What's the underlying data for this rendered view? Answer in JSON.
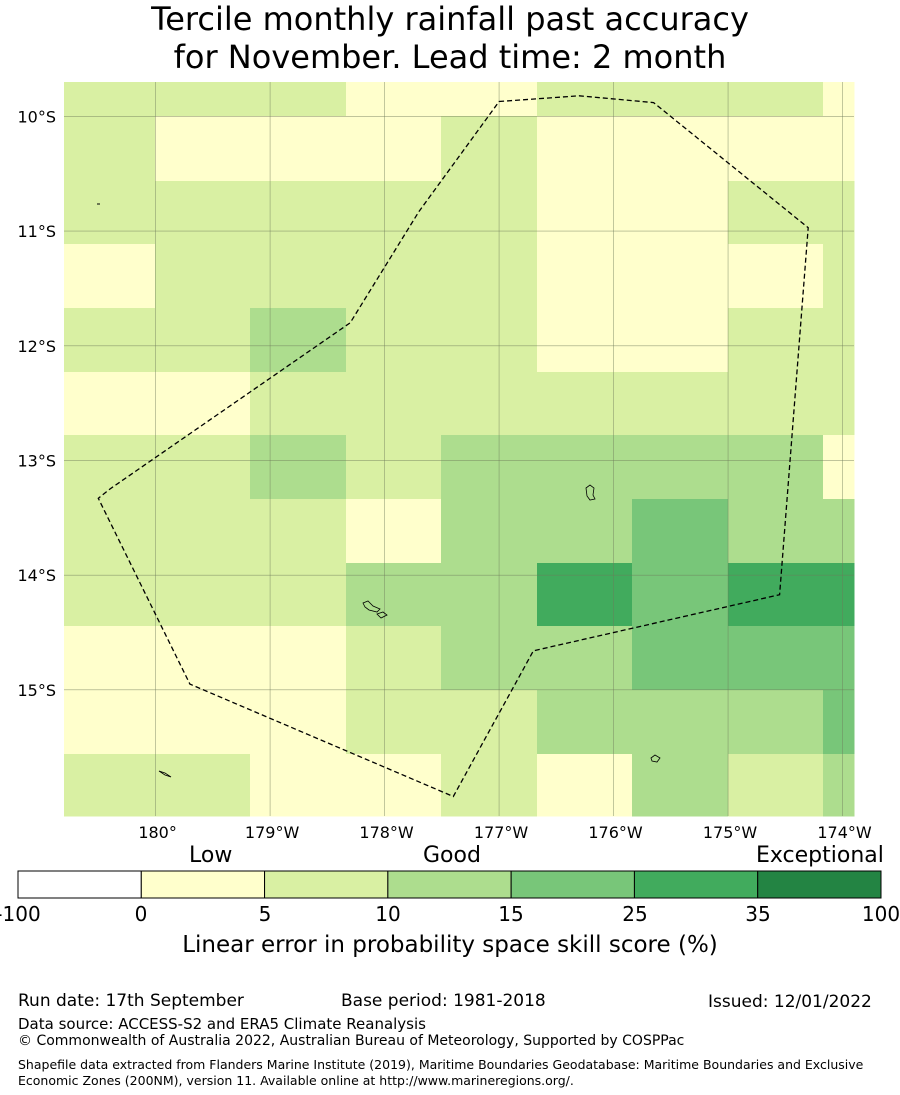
{
  "title": {
    "line1": "Tercile monthly rainfall past accuracy",
    "line2": "for November. Lead time: 2 month"
  },
  "map": {
    "lat_labels": [
      "10°S",
      "11°S",
      "12°S",
      "13°S",
      "14°S",
      "15°S"
    ],
    "lon_labels": [
      "180°",
      "179°W",
      "178°W",
      "177°W",
      "176°W",
      "175°W",
      "174°W"
    ],
    "extent": {
      "lon": [
        -180.8,
        -173.9
      ],
      "lat": [
        -16.1,
        -9.7
      ]
    },
    "grid_rows": [
      [
        1,
        1,
        1,
        0,
        0,
        1,
        1,
        1,
        0
      ],
      [
        1,
        0,
        0,
        0,
        1,
        0,
        0,
        0,
        0
      ],
      [
        1,
        1,
        1,
        1,
        1,
        0,
        0,
        1,
        1
      ],
      [
        0,
        1,
        1,
        1,
        1,
        0,
        0,
        0,
        1
      ],
      [
        1,
        1,
        2,
        1,
        1,
        0,
        0,
        1,
        1
      ],
      [
        0,
        0,
        1,
        1,
        1,
        1,
        1,
        1,
        1
      ],
      [
        1,
        1,
        2,
        1,
        2,
        2,
        2,
        2,
        0
      ],
      [
        1,
        1,
        1,
        0,
        2,
        2,
        3,
        2,
        2
      ],
      [
        1,
        1,
        1,
        2,
        2,
        4,
        3,
        4,
        4
      ],
      [
        0,
        0,
        0,
        1,
        2,
        2,
        3,
        3,
        3
      ],
      [
        0,
        0,
        0,
        1,
        1,
        2,
        2,
        2,
        3
      ],
      [
        1,
        1,
        0,
        0,
        1,
        0,
        2,
        1,
        2
      ]
    ],
    "eez_boundary": [
      [
        -177.0,
        -9.87
      ],
      [
        -176.3,
        -9.82
      ],
      [
        -175.65,
        -9.88
      ],
      [
        -174.3,
        -10.97
      ],
      [
        -174.55,
        -14.17
      ],
      [
        -176.7,
        -14.66
      ],
      [
        -177.4,
        -15.93
      ],
      [
        -179.7,
        -14.95
      ],
      [
        -180.5,
        -13.33
      ],
      [
        -180.4,
        -13.25
      ],
      [
        -178.3,
        -11.8
      ],
      [
        -177.7,
        -10.83
      ]
    ]
  },
  "colorbar": {
    "words": [
      "Low",
      "Good",
      "Exceptional"
    ],
    "ticks": [
      "-100",
      "0",
      "5",
      "10",
      "15",
      "25",
      "35",
      "100"
    ],
    "colors": [
      "#ffffff",
      "#ffffcc",
      "#d9f0a3",
      "#addd8e",
      "#78c679",
      "#41ab5d",
      "#238443"
    ],
    "label": "Linear error in probability space skill score (%)"
  },
  "footer": {
    "run_date": "Run date: 17th September",
    "base_period": "Base period: 1981-2018",
    "issued": "Issued: 12/01/2022",
    "data_source": "Data source: ACCESS-S2 and ERA5 Climate Reanalysis",
    "copyright": "© Commonwealth of Australia 2022, Australian Bureau of Meteorology, Supported by COSPPac",
    "shapefile": "Shapefile data extracted from Flanders Marine Institute (2019), Maritime Boundaries Geodatabase: Maritime Boundaries and Exclusive Economic Zones (200NM), version 11. Available online at http://www.marineregions.org/."
  }
}
